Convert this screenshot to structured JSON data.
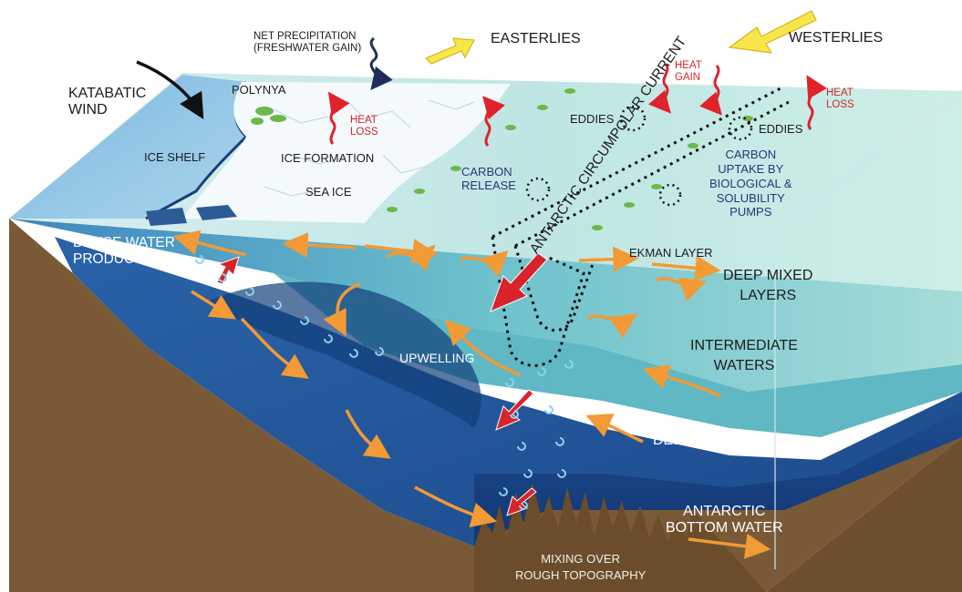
{
  "labels": {
    "net_precipitation": "NET PRECIPITATION\n(FRESHWATER GAIN)",
    "easterlies": "EASTERLIES",
    "westerlies": "WESTERLIES",
    "katabatic_wind": "KATABATIC\nWIND",
    "polynya": "POLYNYA",
    "heat_loss_left": "HEAT\nLOSS",
    "heat_gain": "HEAT\nGAIN",
    "heat_loss_right": "HEAT\nLOSS",
    "ice_shelf": "ICE SHELF",
    "ice_formation": "ICE FORMATION",
    "sea_ice": "SEA ICE",
    "carbon_release": "CARBON\nRELEASE",
    "eddies_left": "EDDIES",
    "eddies_right": "EDDIES",
    "carbon_uptake": "CARBON\nUPTAKE BY\nBIOLOGICAL &\nSOLUBILITY\nPUMPS",
    "acc": "ANTARCTIC CIRCUMPOLAR CURRENT",
    "dense_water": "DENSE WATER\nPRODUCTION",
    "ekman_layer": "EKMAN LAYER",
    "deep_mixed_layers": "DEEP MIXED\nLAYERS",
    "intermediate_waters": "INTERMEDIATE\nWATERS",
    "upwelling": "UPWELLING",
    "deep_waters": "DEEP WATERS",
    "antarctic_bottom_water": "ANTARCTIC\nBOTTOM WATER",
    "mixing": "MIXING OVER\nROUGH TOPOGRAPHY"
  },
  "colors": {
    "sediment": "#7a5a36",
    "surface_water": "#8fd3d3",
    "intermediate_water": "#5fb8c4",
    "deep_water": "#23508f",
    "bottom_water": "#163d7e",
    "ice": "#eef6fb",
    "ice_shelf": "#8ec3e3",
    "wind_arrow": "#f7e64a",
    "flow_arrow": "#f29a35",
    "vertical_arrow": "#d9232a",
    "heat_arrow": "#e0232b",
    "label_navy": "#27357a"
  },
  "icons": [
    "katabatic-wind-arrow",
    "precipitation-arrow",
    "easterlies-arrow",
    "westerlies-arrow",
    "heat-arrow",
    "flow-arrow",
    "eddy-loop",
    "mixing-swirl"
  ]
}
